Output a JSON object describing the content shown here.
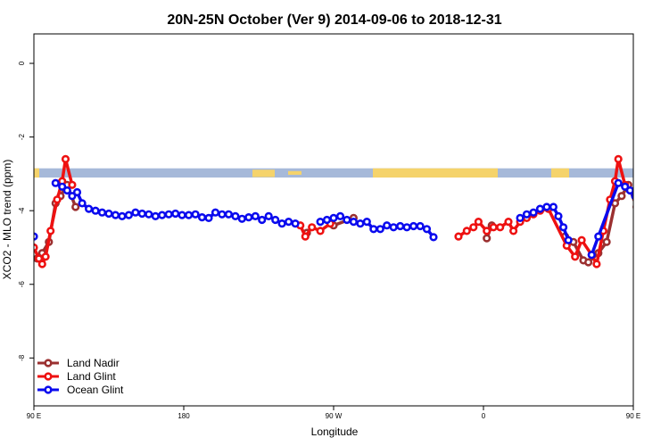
{
  "chart_data": {
    "type": "line",
    "title": "20N-25N October (Ver 9)   2014-09-06 to 2018-12-31",
    "xlabel": "Longitude",
    "ylabel": "XCO2 - MLO trend (ppm)",
    "xlim": [
      90,
      450
    ],
    "ylim": [
      -9.3,
      0.8
    ],
    "grid": false,
    "legend_position": "bottom-left",
    "x_ticks": [
      {
        "value": 90,
        "label": "90 E"
      },
      {
        "value": 180,
        "label": "180"
      },
      {
        "value": 270,
        "label": "90 W"
      },
      {
        "value": 360,
        "label": "0"
      },
      {
        "value": 450,
        "label": "90 E"
      },
      {
        "value": 540,
        "label": "180"
      }
    ],
    "y_ticks": [
      {
        "value": 0,
        "label": "0"
      },
      {
        "value": -2,
        "label": "-2"
      },
      {
        "value": -4,
        "label": "-4"
      },
      {
        "value": -6,
        "label": "-6"
      },
      {
        "value": -8,
        "label": "-8"
      }
    ],
    "land_mask_band": {
      "y_top": -2.85,
      "y_bottom": -3.1,
      "ocean_color": "#a6b9d9",
      "land_color": "#f5d36b"
    },
    "series": [
      {
        "name": "Land Nadir",
        "color": "#9b3030",
        "points": [
          [
            92,
            -5.3
          ],
          [
            95,
            -5.15
          ],
          [
            99,
            -4.85
          ],
          [
            103,
            -3.8
          ],
          [
            106,
            -3.6
          ],
          [
            110,
            -3.3
          ],
          [
            115,
            -3.9
          ],
          [
            254,
            -4.6
          ],
          [
            270,
            -4.4
          ],
          [
            282,
            -4.2
          ],
          [
            362,
            -4.75
          ],
          [
            365,
            -4.4
          ],
          [
            409,
            -4.7
          ],
          [
            414,
            -4.85
          ],
          [
            420,
            -5.35
          ],
          [
            423,
            -5.4
          ],
          [
            429,
            -5.15
          ],
          [
            434,
            -4.85
          ],
          [
            439,
            -3.8
          ],
          [
            443,
            -3.6
          ],
          [
            447,
            -3.3
          ],
          [
            452,
            -3.9
          ]
        ]
      },
      {
        "name": "Land Glint",
        "color": "#ee1111",
        "points": [
          [
            90,
            -5.0
          ],
          [
            93,
            -5.3
          ],
          [
            95,
            -5.45
          ],
          [
            97,
            -5.25
          ],
          [
            100,
            -4.55
          ],
          [
            104,
            -3.7
          ],
          [
            107,
            -3.2
          ],
          [
            109,
            -2.6
          ],
          [
            113,
            -3.3
          ],
          [
            250,
            -4.4
          ],
          [
            253,
            -4.7
          ],
          [
            257,
            -4.45
          ],
          [
            262,
            -4.55
          ],
          [
            268,
            -4.35
          ],
          [
            345,
            -4.7
          ],
          [
            350,
            -4.55
          ],
          [
            354,
            -4.45
          ],
          [
            357,
            -4.3
          ],
          [
            362,
            -4.55
          ],
          [
            366,
            -4.45
          ],
          [
            370,
            -4.45
          ],
          [
            375,
            -4.3
          ],
          [
            378,
            -4.55
          ],
          [
            382,
            -4.3
          ],
          [
            386,
            -4.2
          ],
          [
            390,
            -4.1
          ],
          [
            394,
            -4.0
          ],
          [
            399,
            -3.95
          ],
          [
            410,
            -4.95
          ],
          [
            415,
            -5.25
          ],
          [
            419,
            -4.8
          ],
          [
            425,
            -5.2
          ],
          [
            428,
            -5.45
          ],
          [
            432,
            -4.55
          ],
          [
            436,
            -3.7
          ],
          [
            439,
            -3.2
          ],
          [
            441,
            -2.6
          ],
          [
            445,
            -3.3
          ]
        ]
      },
      {
        "name": "Ocean Glint",
        "color": "#0a0aee",
        "points": [
          [
            90,
            -4.7
          ],
          [
            103,
            -3.25
          ],
          [
            107,
            -3.35
          ],
          [
            110,
            -3.45
          ],
          [
            113,
            -3.6
          ],
          [
            116,
            -3.5
          ],
          [
            119,
            -3.8
          ],
          [
            123,
            -3.95
          ],
          [
            127,
            -4.0
          ],
          [
            131,
            -4.05
          ],
          [
            135,
            -4.08
          ],
          [
            139,
            -4.12
          ],
          [
            143,
            -4.15
          ],
          [
            147,
            -4.12
          ],
          [
            151,
            -4.05
          ],
          [
            155,
            -4.08
          ],
          [
            159,
            -4.1
          ],
          [
            163,
            -4.15
          ],
          [
            167,
            -4.12
          ],
          [
            171,
            -4.1
          ],
          [
            175,
            -4.08
          ],
          [
            179,
            -4.12
          ],
          [
            183,
            -4.12
          ],
          [
            187,
            -4.1
          ],
          [
            191,
            -4.18
          ],
          [
            195,
            -4.2
          ],
          [
            199,
            -4.05
          ],
          [
            203,
            -4.1
          ],
          [
            207,
            -4.1
          ],
          [
            211,
            -4.15
          ],
          [
            215,
            -4.22
          ],
          [
            219,
            -4.18
          ],
          [
            223,
            -4.15
          ],
          [
            227,
            -4.25
          ],
          [
            231,
            -4.15
          ],
          [
            235,
            -4.25
          ],
          [
            239,
            -4.35
          ],
          [
            243,
            -4.3
          ],
          [
            247,
            -4.35
          ],
          [
            262,
            -4.3
          ],
          [
            266,
            -4.25
          ],
          [
            270,
            -4.2
          ],
          [
            274,
            -4.15
          ],
          [
            278,
            -4.25
          ],
          [
            282,
            -4.3
          ],
          [
            286,
            -4.35
          ],
          [
            290,
            -4.3
          ],
          [
            294,
            -4.5
          ],
          [
            298,
            -4.5
          ],
          [
            302,
            -4.4
          ],
          [
            306,
            -4.45
          ],
          [
            310,
            -4.42
          ],
          [
            314,
            -4.45
          ],
          [
            318,
            -4.42
          ],
          [
            322,
            -4.42
          ],
          [
            326,
            -4.5
          ],
          [
            330,
            -4.72
          ],
          [
            382,
            -4.2
          ],
          [
            386,
            -4.1
          ],
          [
            390,
            -4.05
          ],
          [
            394,
            -3.95
          ],
          [
            398,
            -3.9
          ],
          [
            402,
            -3.9
          ],
          [
            405,
            -4.15
          ],
          [
            408,
            -4.45
          ],
          [
            411,
            -4.8
          ],
          [
            425,
            -5.2
          ],
          [
            429,
            -4.7
          ],
          [
            441,
            -3.25
          ],
          [
            445,
            -3.35
          ],
          [
            448,
            -3.45
          ],
          [
            451,
            -3.6
          ],
          [
            454,
            -3.5
          ],
          [
            457,
            -3.8
          ],
          [
            461,
            -3.95
          ],
          [
            465,
            -4.0
          ],
          [
            469,
            -4.05
          ],
          [
            473,
            -4.08
          ],
          [
            477,
            -4.12
          ],
          [
            481,
            -4.15
          ],
          [
            485,
            -4.12
          ],
          [
            489,
            -4.05
          ],
          [
            493,
            -4.08
          ]
        ]
      }
    ]
  }
}
